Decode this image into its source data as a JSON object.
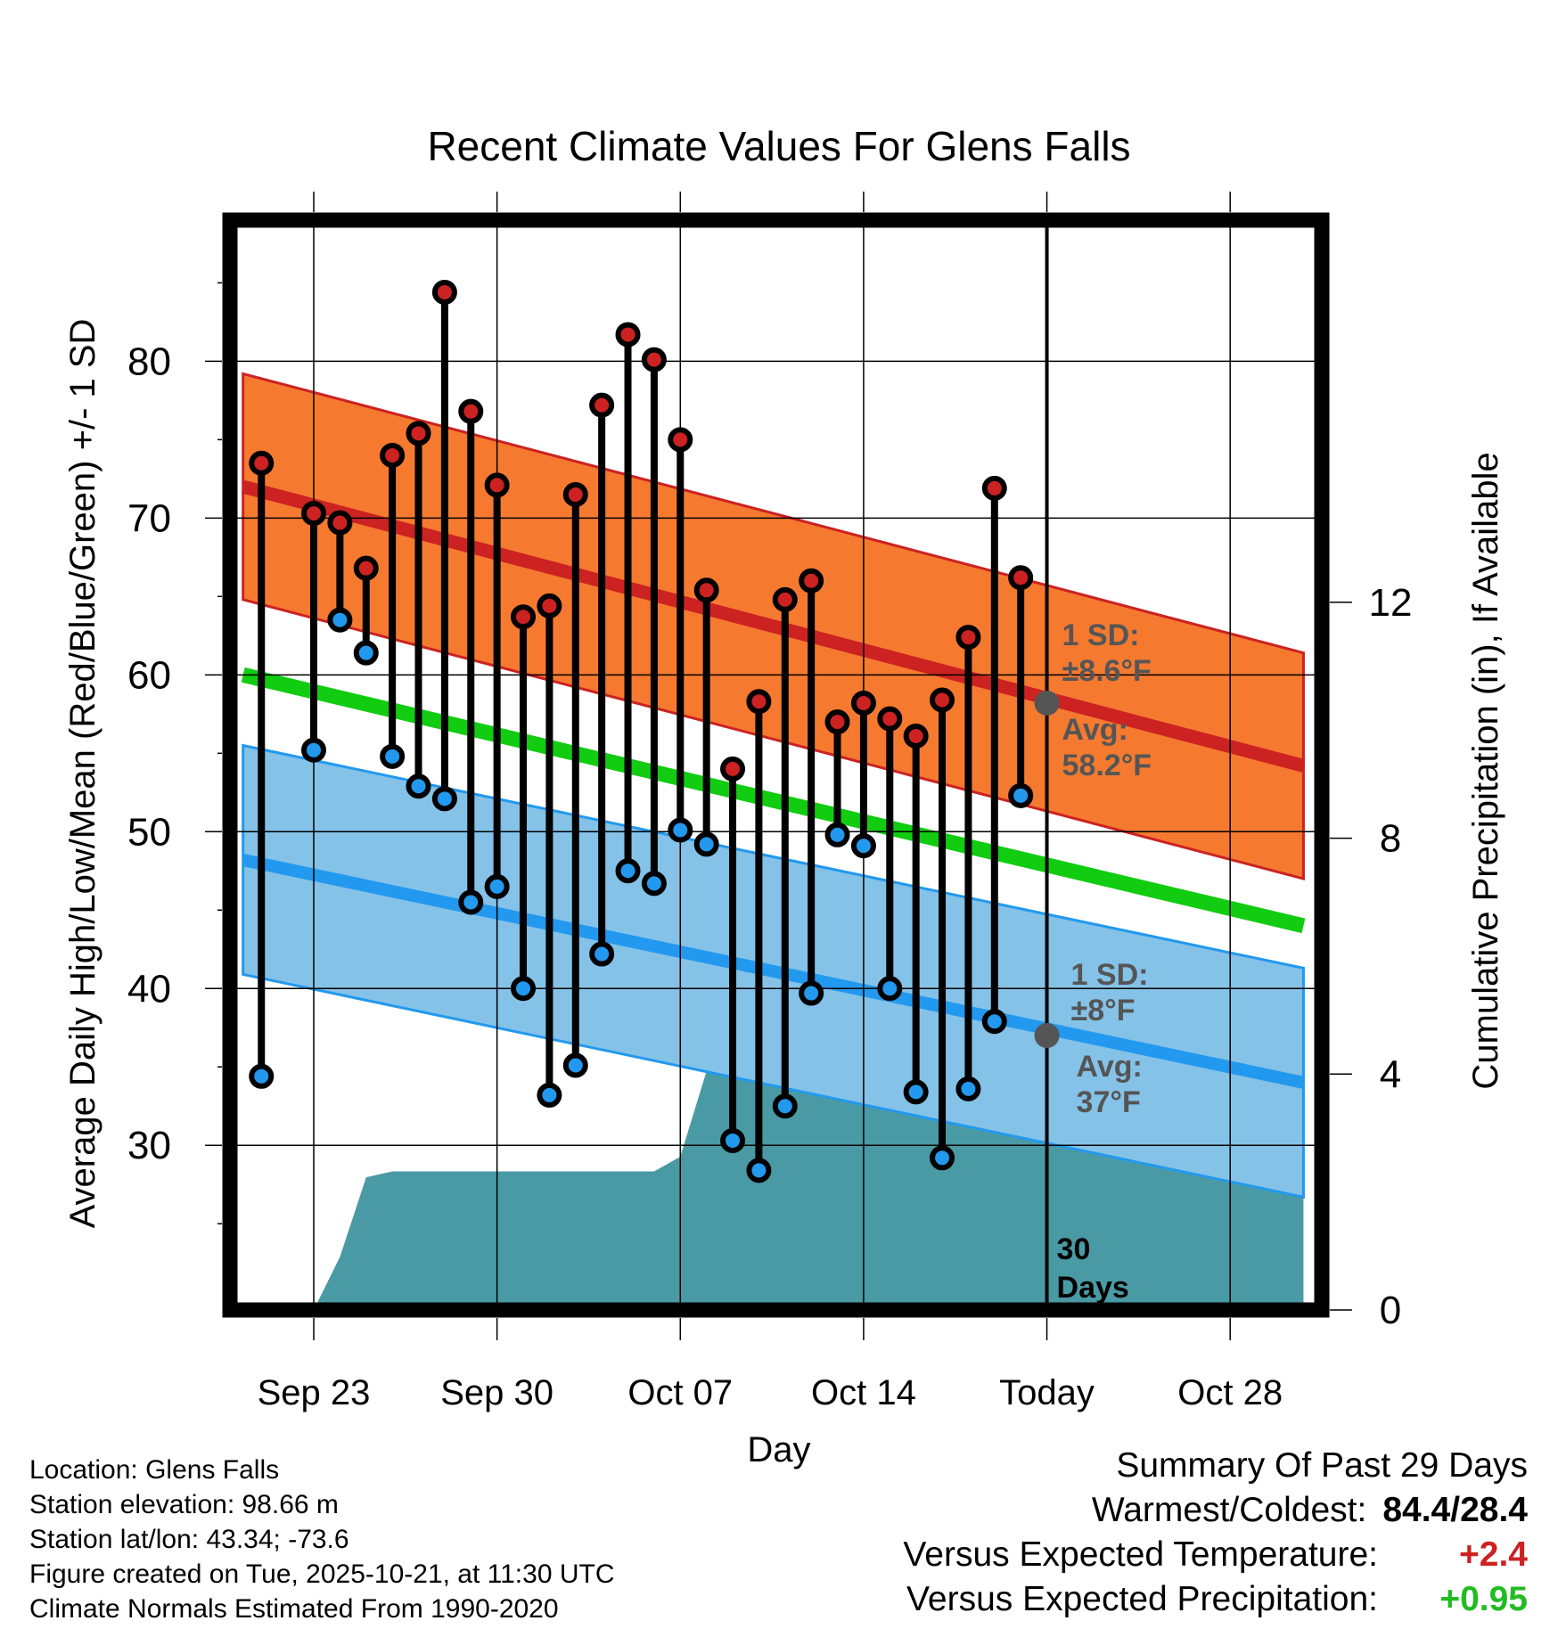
{
  "chart_data": {
    "type": "line",
    "title": "Recent Climate Values For Glens Falls",
    "xlabel": "Day",
    "ylabel": "Average Daily High/Low/Mean (Red/Blue/Green) +/- 1 SD",
    "y2label": "Cumulative Precipitation (in), If Available",
    "ylim": [
      19.5,
      89
    ],
    "y2lim": [
      0,
      18.48
    ],
    "xlim": [
      -3.2,
      38.5
    ],
    "x_ticks": [
      {
        "x": 0,
        "label": "Sep 23"
      },
      {
        "x": 7,
        "label": "Sep 30"
      },
      {
        "x": 14,
        "label": "Oct 07"
      },
      {
        "x": 21,
        "label": "Oct 14"
      },
      {
        "x": 28,
        "label": "Today"
      },
      {
        "x": 35,
        "label": "Oct 28"
      }
    ],
    "y_ticks": [
      30,
      40,
      50,
      60,
      70,
      80
    ],
    "y2_ticks": [
      0,
      4,
      8,
      12
    ],
    "days": [
      -2,
      0,
      1,
      2,
      3,
      4,
      5,
      6,
      7,
      8,
      9,
      10,
      11,
      12,
      13,
      14,
      15,
      16,
      17,
      18,
      19,
      20,
      21,
      22,
      23,
      24,
      25,
      26,
      27
    ],
    "series": [
      {
        "name": "Daily High",
        "color": "#cc2222",
        "values": [
          73.5,
          70.3,
          69.7,
          66.8,
          74.0,
          75.4,
          84.4,
          76.8,
          72.1,
          63.7,
          64.4,
          71.5,
          77.2,
          81.7,
          80.1,
          75.0,
          65.4,
          54.0,
          58.3,
          64.8,
          66.0,
          57.0,
          58.2,
          57.2,
          56.1,
          58.4,
          62.4,
          71.9,
          66.2
        ]
      },
      {
        "name": "Daily Low",
        "color": "#2299ee",
        "values": [
          34.4,
          55.2,
          63.5,
          61.4,
          54.8,
          52.9,
          52.1,
          45.5,
          46.5,
          40.0,
          33.2,
          35.1,
          42.2,
          47.5,
          46.7,
          50.1,
          49.2,
          30.3,
          28.4,
          32.5,
          39.7,
          49.8,
          49.1,
          40.0,
          33.4,
          29.2,
          33.6,
          37.9,
          52.3
        ]
      }
    ],
    "normals": {
      "high_start": 72.0,
      "high_end": 54.2,
      "high_sd": 7.2,
      "low_start": 48.2,
      "low_end": 34.0,
      "low_sd": 7.3,
      "mean_start": 60.0,
      "mean_end": 44.0,
      "x_start": -2.7,
      "x_end": 37.8
    },
    "precipitation": {
      "color": "#4a9aa5",
      "points": [
        [
          -2.7,
          0
        ],
        [
          0,
          0
        ],
        [
          1,
          0.9
        ],
        [
          2,
          2.25
        ],
        [
          3,
          2.35
        ],
        [
          13,
          2.35
        ],
        [
          14,
          2.6
        ],
        [
          15,
          4.05
        ],
        [
          18,
          4.05
        ],
        [
          19,
          4.1
        ],
        [
          20,
          4.3
        ],
        [
          26,
          4.3
        ],
        [
          27,
          4.7
        ],
        [
          37.8,
          4.7
        ]
      ]
    },
    "today": {
      "x": 28,
      "avg_high": 58.2,
      "avg_low": 37.0,
      "annotation_days": "30\nDays",
      "high_sd_label": "1 SD:\n±8.6°F",
      "high_avg_label": "Avg:\n58.2°F",
      "low_sd_label": "1 SD:\n±8°F",
      "low_avg_label": "Avg:\n37°F"
    }
  },
  "station": {
    "location": "Location: Glens Falls",
    "elevation": "Station elevation: 98.66 m",
    "latlon": "Station lat/lon: 43.34; -73.6",
    "created": "Figure created on Tue, 2025-10-21, at 11:30 UTC",
    "normals": "Climate Normals Estimated From 1990-2020"
  },
  "summary": {
    "heading": "Summary Of Past 29 Days",
    "warm_cold_label": "Warmest/Coldest:",
    "warm_cold_value": "84.4/28.4",
    "temp_label": "Versus Expected Temperature:",
    "temp_value": "+2.4",
    "temp_color": "#cc2222",
    "precip_label": "Versus Expected Precipitation:",
    "precip_value": "+0.95",
    "precip_color": "#22bb22"
  }
}
